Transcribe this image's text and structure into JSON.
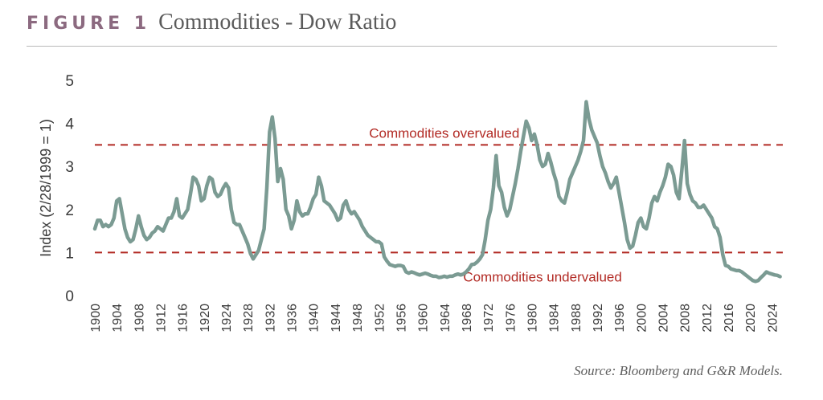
{
  "figure_label": "FIGURE 1",
  "title": "Commodities - Dow Ratio",
  "source": "Source: Bloomberg and G&R Models.",
  "colors": {
    "line": "#7b9b93",
    "threshold": "#b22a24",
    "axis_text": "#3a3a3a",
    "header_label": "#8c6a80"
  },
  "chart_data": {
    "type": "line",
    "title": "Commodities - Dow Ratio",
    "xlabel": "",
    "ylabel": "Index (2/28/1999 = 1)",
    "xlim": [
      1900,
      2026
    ],
    "ylim": [
      0,
      5
    ],
    "yticks": [
      0,
      1,
      2,
      3,
      4,
      5
    ],
    "xticks": [
      1900,
      1904,
      1908,
      1912,
      1916,
      1920,
      1924,
      1928,
      1932,
      1936,
      1940,
      1944,
      1948,
      1952,
      1956,
      1960,
      1964,
      1968,
      1972,
      1976,
      1980,
      1984,
      1988,
      1992,
      1996,
      2000,
      2004,
      2008,
      2012,
      2016,
      2020,
      2024
    ],
    "grid": false,
    "thresholds": [
      {
        "y": 3.5,
        "label": "Commodities overvalued",
        "label_x": 1964
      },
      {
        "y": 1.0,
        "label": "Commodities undervalued",
        "label_x": 1982
      }
    ],
    "series": [
      {
        "x": [
          1900,
          1900.5,
          1901,
          1901.5,
          1902,
          1902.5,
          1903,
          1903.5,
          1904,
          1904.5,
          1905,
          1905.5,
          1906,
          1906.5,
          1907,
          1907.5,
          1908,
          1908.5,
          1909,
          1909.5,
          1910,
          1910.5,
          1911,
          1911.5,
          1912,
          1912.5,
          1913,
          1913.5,
          1914,
          1914.5,
          1915,
          1915.5,
          1916,
          1916.5,
          1917,
          1917.5,
          1918,
          1918.5,
          1919,
          1919.5,
          1920,
          1920.5,
          1921,
          1921.5,
          1922,
          1922.5,
          1923,
          1923.5,
          1924,
          1924.5,
          1925,
          1925.5,
          1926,
          1926.5,
          1927,
          1927.5,
          1928,
          1928.5,
          1929,
          1929.5,
          1930,
          1930.5,
          1931,
          1931.5,
          1932,
          1932.5,
          1933,
          1933.5,
          1934,
          1934.5,
          1935,
          1935.5,
          1936,
          1936.5,
          1937,
          1937.5,
          1938,
          1938.5,
          1939,
          1939.5,
          1940,
          1940.5,
          1941,
          1941.5,
          1942,
          1942.5,
          1943,
          1943.5,
          1944,
          1944.5,
          1945,
          1945.5,
          1946,
          1946.5,
          1947,
          1947.5,
          1948,
          1948.5,
          1949,
          1949.5,
          1950,
          1950.5,
          1951,
          1951.5,
          1952,
          1952.5,
          1953,
          1953.5,
          1954,
          1954.5,
          1955,
          1955.5,
          1956,
          1956.5,
          1957,
          1957.5,
          1958,
          1958.5,
          1959,
          1959.5,
          1960,
          1960.5,
          1961,
          1961.5,
          1962,
          1962.5,
          1963,
          1963.5,
          1964,
          1964.5,
          1965,
          1965.5,
          1966,
          1966.5,
          1967,
          1967.5,
          1968,
          1968.5,
          1969,
          1969.5,
          1970,
          1970.5,
          1971,
          1971.5,
          1972,
          1972.5,
          1973,
          1973.5,
          1974,
          1974.5,
          1975,
          1975.5,
          1976,
          1976.5,
          1977,
          1977.5,
          1978,
          1978.5,
          1979,
          1979.5,
          1980,
          1980.5,
          1981,
          1981.5,
          1982,
          1982.5,
          1983,
          1983.5,
          1984,
          1984.5,
          1985,
          1985.5,
          1986,
          1986.5,
          1987,
          1987.5,
          1988,
          1988.5,
          1989,
          1989.5,
          1990,
          1990.5,
          1991,
          1991.5,
          1992,
          1992.5,
          1993,
          1993.5,
          1994,
          1994.5,
          1995,
          1995.5,
          1996,
          1996.5,
          1997,
          1997.5,
          1998,
          1998.5,
          1999,
          1999.5,
          2000,
          2000.5,
          2001,
          2001.5,
          2002,
          2002.5,
          2003,
          2003.5,
          2004,
          2004.5,
          2005,
          2005.5,
          2006,
          2006.5,
          2007,
          2007.5,
          2008,
          2008.5,
          2009,
          2009.5,
          2010,
          2010.5,
          2011,
          2011.5,
          2012,
          2012.5,
          2013,
          2013.5,
          2014,
          2014.5,
          2015,
          2015.5,
          2016,
          2016.5,
          2017,
          2017.5,
          2018,
          2018.5,
          2019,
          2019.5,
          2020,
          2020.5,
          2021,
          2021.5,
          2022,
          2022.5,
          2023,
          2023.5,
          2024,
          2024.5,
          2025,
          2025.5
        ],
        "values": [
          1.55,
          1.75,
          1.75,
          1.6,
          1.65,
          1.6,
          1.65,
          1.8,
          2.2,
          2.25,
          1.9,
          1.55,
          1.35,
          1.25,
          1.3,
          1.55,
          1.85,
          1.6,
          1.4,
          1.3,
          1.35,
          1.45,
          1.5,
          1.6,
          1.55,
          1.5,
          1.65,
          1.8,
          1.8,
          1.95,
          2.25,
          1.85,
          1.8,
          1.9,
          2.0,
          2.35,
          2.75,
          2.7,
          2.55,
          2.2,
          2.25,
          2.55,
          2.75,
          2.7,
          2.4,
          2.3,
          2.35,
          2.5,
          2.6,
          2.5,
          2.0,
          1.7,
          1.65,
          1.65,
          1.5,
          1.35,
          1.2,
          0.98,
          0.85,
          0.95,
          1.05,
          1.3,
          1.55,
          2.5,
          3.8,
          4.15,
          3.65,
          2.65,
          2.95,
          2.7,
          2.0,
          1.85,
          1.55,
          1.75,
          2.2,
          1.95,
          1.85,
          1.9,
          1.9,
          2.05,
          2.25,
          2.35,
          2.75,
          2.55,
          2.2,
          2.15,
          2.1,
          2.0,
          1.9,
          1.75,
          1.8,
          2.1,
          2.2,
          2.0,
          1.9,
          1.95,
          1.85,
          1.75,
          1.6,
          1.5,
          1.4,
          1.35,
          1.3,
          1.25,
          1.25,
          1.2,
          0.9,
          0.8,
          0.72,
          0.7,
          0.68,
          0.7,
          0.7,
          0.68,
          0.55,
          0.52,
          0.55,
          0.53,
          0.5,
          0.48,
          0.5,
          0.52,
          0.5,
          0.47,
          0.45,
          0.45,
          0.42,
          0.43,
          0.45,
          0.43,
          0.45,
          0.45,
          0.48,
          0.5,
          0.48,
          0.5,
          0.55,
          0.62,
          0.72,
          0.73,
          0.78,
          0.85,
          0.95,
          1.3,
          1.75,
          2.0,
          2.5,
          3.25,
          2.55,
          2.4,
          2.05,
          1.85,
          2.0,
          2.3,
          2.6,
          2.95,
          3.35,
          3.7,
          4.05,
          3.9,
          3.6,
          3.75,
          3.5,
          3.15,
          3.0,
          3.05,
          3.3,
          3.1,
          2.85,
          2.65,
          2.3,
          2.2,
          2.15,
          2.4,
          2.7,
          2.85,
          3.0,
          3.15,
          3.35,
          3.6,
          4.5,
          4.1,
          3.85,
          3.7,
          3.55,
          3.25,
          3.0,
          2.85,
          2.65,
          2.5,
          2.6,
          2.75,
          2.4,
          2.05,
          1.7,
          1.3,
          1.1,
          1.15,
          1.4,
          1.7,
          1.8,
          1.6,
          1.55,
          1.8,
          2.15,
          2.3,
          2.2,
          2.4,
          2.55,
          2.75,
          3.05,
          3.0,
          2.8,
          2.4,
          2.25,
          2.9,
          3.6,
          2.6,
          2.35,
          2.2,
          2.15,
          2.05,
          2.05,
          2.1,
          2.0,
          1.9,
          1.8,
          1.6,
          1.55,
          1.35,
          0.95,
          0.7,
          0.68,
          0.62,
          0.6,
          0.58,
          0.58,
          0.55,
          0.5,
          0.45,
          0.4,
          0.35,
          0.33,
          0.35,
          0.42,
          0.48,
          0.55,
          0.52,
          0.5,
          0.48,
          0.47,
          0.44
        ]
      }
    ]
  }
}
